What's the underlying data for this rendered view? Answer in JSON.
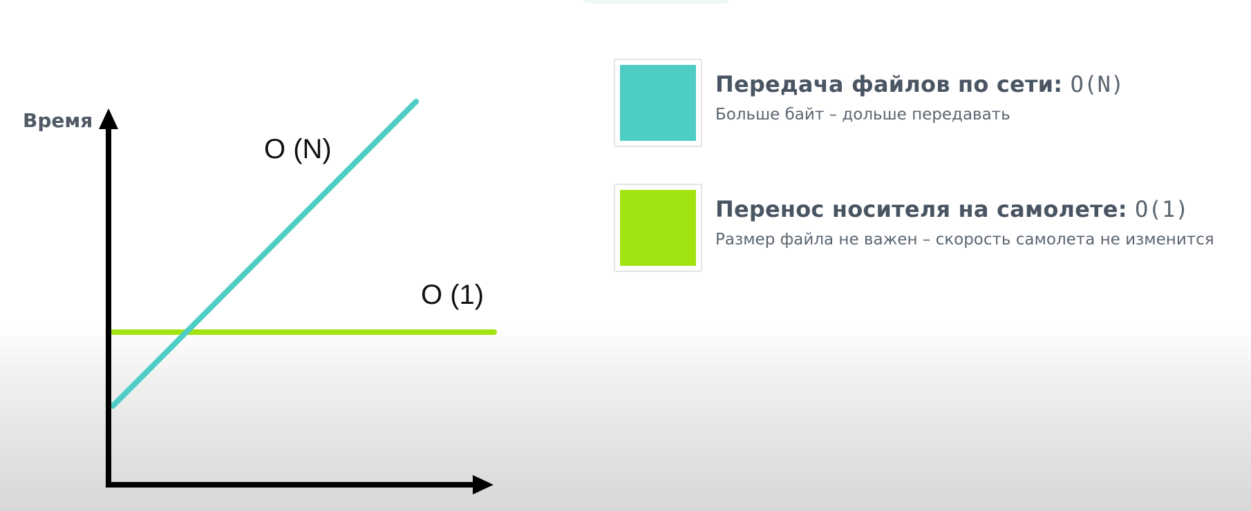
{
  "diagram": {
    "y_axis_label": "Время",
    "curves": [
      {
        "id": "linear",
        "label": "O (N)",
        "color": "#4ecdc4"
      },
      {
        "id": "constant",
        "label": "O (1)",
        "color": "#a2e312"
      }
    ]
  },
  "legend": {
    "items": [
      {
        "title": "Передача файлов по сети:",
        "complexity": "O(N)",
        "description": "Больше байт – дольше передавать",
        "color": "#4ecdc4"
      },
      {
        "title": "Перенос носителя на самолете:",
        "complexity": "O(1)",
        "description": "Размер файла не важен – скорость самолета не изменится",
        "color": "#a2e312"
      }
    ]
  }
}
